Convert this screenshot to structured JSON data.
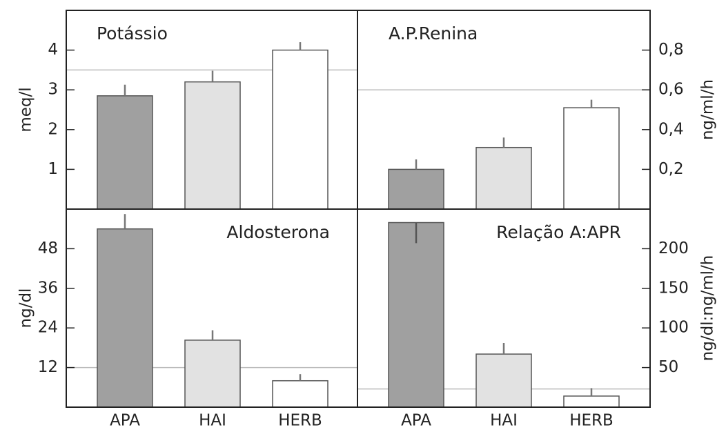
{
  "chart_data": [
    {
      "type": "bar",
      "title": "Potássio",
      "ylabel": "meq/l",
      "values": [
        2.85,
        3.2,
        4.0
      ],
      "errors": [
        0.28,
        0.28,
        0.2
      ],
      "colors": [
        "#a0a0a0",
        "#e2e2e2",
        "#ffffff"
      ],
      "reference": 3.5,
      "ylim": [
        0,
        5
      ],
      "yticks": [
        1,
        2,
        3,
        4
      ]
    },
    {
      "type": "bar",
      "title": "A.P.Renina",
      "ylabel": "ng/ml/h",
      "values": [
        0.2,
        0.31,
        0.51
      ],
      "errors": [
        0.05,
        0.05,
        0.04
      ],
      "colors": [
        "#a0a0a0",
        "#e2e2e2",
        "#ffffff"
      ],
      "reference": 0.6,
      "ylim": [
        0,
        1
      ],
      "yticks": [
        {
          "value": 0.2,
          "label": "0,2"
        },
        {
          "value": 0.4,
          "label": "0,4"
        },
        {
          "value": 0.6,
          "label": "0,6"
        },
        {
          "value": 0.8,
          "label": "0,8"
        }
      ]
    },
    {
      "type": "bar",
      "title": "Aldosterona",
      "ylabel": "ng/dl",
      "categories": [
        "APA",
        "HAI",
        "HERB"
      ],
      "values": [
        54,
        20.3,
        8
      ],
      "errors": [
        4.5,
        3,
        2
      ],
      "colors": [
        "#a0a0a0",
        "#e2e2e2",
        "#ffffff"
      ],
      "reference": 12,
      "ylim": [
        0,
        60
      ],
      "yticks": [
        12,
        24,
        36,
        48
      ]
    },
    {
      "type": "bar",
      "title": "Relação A:APR",
      "ylabel": "ng/dl:ng/ml/h",
      "categories": [
        "APA",
        "HAI",
        "HERB"
      ],
      "values": [
        233,
        67,
        14
      ],
      "errors": [
        26,
        14,
        10
      ],
      "colors": [
        "#a0a0a0",
        "#e2e2e2",
        "#ffffff"
      ],
      "reference": 23,
      "ylim": [
        0,
        250
      ],
      "yticks": [
        50,
        100,
        150,
        200
      ]
    }
  ]
}
